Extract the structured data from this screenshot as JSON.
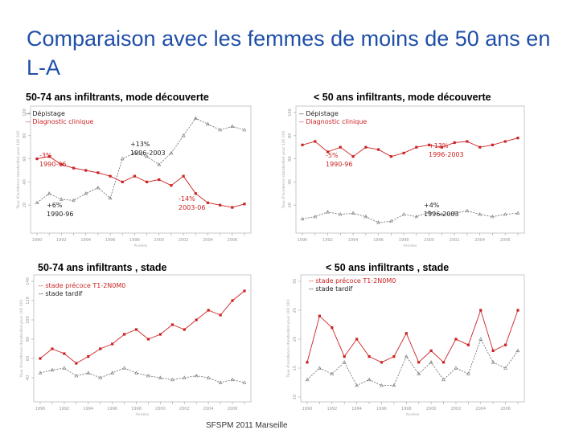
{
  "slide": {
    "title": "Comparaison avec les femmes de moins de 50 ans en L-A",
    "footer": "SFSPM 2011 Marseille"
  },
  "chart_data": [
    {
      "id": "c1",
      "type": "line",
      "title": "50-74 ans infiltrants, mode découverte",
      "xlabel": "Années",
      "ylabel": "Taux d'incidence standardisé pour 100 000",
      "categories": [
        "1990",
        "1991",
        "1992",
        "1993",
        "1994",
        "1995",
        "1996",
        "1997",
        "1998",
        "1999",
        "2000",
        "2001",
        "2002",
        "2003",
        "2004",
        "2005",
        "2006",
        "2007"
      ],
      "x_tick_labels": [
        "1990",
        "1992",
        "1994",
        "1996",
        "1998",
        "2000",
        "2002",
        "2004",
        "2006"
      ],
      "ylim": [
        0,
        100
      ],
      "y_ticks": [
        "20",
        "40",
        "60",
        "80",
        "100"
      ],
      "series": [
        {
          "name": "-- Dépistage",
          "color": "#777777",
          "marker": "triangle",
          "values": [
            22,
            30,
            25,
            24,
            30,
            35,
            26,
            60,
            65,
            62,
            55,
            65,
            80,
            95,
            90,
            85,
            88,
            85
          ]
        },
        {
          "name": "-- Diagnostic clinique",
          "color": "#cc2222",
          "marker": "square",
          "values": [
            60,
            62,
            55,
            52,
            50,
            48,
            45,
            40,
            45,
            40,
            42,
            37,
            45,
            30,
            22,
            20,
            18,
            21
          ]
        }
      ],
      "annotations": [
        {
          "lines": [
            "-3%",
            "1990-96"
          ],
          "color": "#cc2222"
        },
        {
          "lines": [
            "+13%",
            "1996-2003"
          ],
          "color": "#222222"
        },
        {
          "lines": [
            "+6%",
            "1990-96"
          ],
          "color": "#222222"
        },
        {
          "lines": [
            "-14%",
            "2003-06"
          ],
          "color": "#cc2222"
        }
      ]
    },
    {
      "id": "c2",
      "type": "line",
      "title": "< 50 ans infiltrants, mode découverte",
      "xlabel": "Années",
      "ylabel": "Taux d'incidence standardisé pour 100 000",
      "categories": [
        "1990",
        "1991",
        "1992",
        "1993",
        "1994",
        "1995",
        "1996",
        "1997",
        "1998",
        "1999",
        "2000",
        "2001",
        "2002",
        "2003",
        "2004",
        "2005",
        "2006",
        "2007"
      ],
      "x_tick_labels": [
        "1990",
        "1992",
        "1994",
        "1996",
        "1998",
        "2000",
        "2002",
        "2004",
        "2006"
      ],
      "ylim": [
        0,
        100
      ],
      "y_ticks": [
        "20",
        "40",
        "60",
        "80",
        "100"
      ],
      "series": [
        {
          "name": "-- Dépistage",
          "color": "#777777",
          "marker": "triangle",
          "values": [
            8,
            10,
            14,
            12,
            13,
            10,
            5,
            6,
            12,
            10,
            14,
            12,
            13,
            15,
            12,
            10,
            12,
            13
          ]
        },
        {
          "name": "-- Diagnostic clinique",
          "color": "#cc2222",
          "marker": "square",
          "values": [
            72,
            75,
            66,
            70,
            62,
            70,
            68,
            62,
            65,
            70,
            72,
            70,
            74,
            75,
            70,
            72,
            75,
            78
          ]
        }
      ],
      "annotations": [
        {
          "lines": [
            "-5%",
            "1990-96"
          ],
          "color": "#cc2222"
        },
        {
          "lines": [
            "+13%",
            "1996-2003"
          ],
          "color": "#cc2222"
        },
        {
          "lines": [
            "+4%",
            "1996-2003"
          ],
          "color": "#222222"
        }
      ]
    },
    {
      "id": "c3",
      "type": "line",
      "title": "50-74 ans infiltrants , stade",
      "xlabel": "Années",
      "ylabel": "Taux d'incidence standardisé pour 100 000",
      "categories": [
        "1990",
        "1991",
        "1992",
        "1993",
        "1994",
        "1995",
        "1996",
        "1997",
        "1998",
        "1999",
        "2000",
        "2001",
        "2002",
        "2003",
        "2004",
        "2005",
        "2006",
        "2007"
      ],
      "x_tick_labels": [
        "1990",
        "1992",
        "1994",
        "1996",
        "1998",
        "2000",
        "2002",
        "2004",
        "2006"
      ],
      "ylim": [
        20,
        140
      ],
      "y_ticks": [
        "40",
        "60",
        "80",
        "100",
        "120",
        "140"
      ],
      "series": [
        {
          "name": "-- stade précoce T1-2N0M0",
          "color": "#cc2222",
          "marker": "square",
          "values": [
            60,
            70,
            65,
            55,
            62,
            70,
            75,
            85,
            90,
            80,
            85,
            95,
            90,
            100,
            110,
            105,
            120,
            130
          ]
        },
        {
          "name": "-- stade tardif",
          "color": "#777777",
          "marker": "triangle",
          "values": [
            45,
            48,
            50,
            42,
            45,
            40,
            45,
            50,
            45,
            42,
            40,
            38,
            40,
            42,
            40,
            35,
            38,
            35
          ]
        }
      ]
    },
    {
      "id": "c4",
      "type": "line",
      "title": "< 50 ans infiltrants , stade",
      "xlabel": "Années",
      "ylabel": "Taux d'incidence standardisé pour 100 000",
      "categories": [
        "1990",
        "1991",
        "1992",
        "1993",
        "1994",
        "1995",
        "1996",
        "1997",
        "1998",
        "1999",
        "2000",
        "2001",
        "2002",
        "2003",
        "2004",
        "2005",
        "2006",
        "2007"
      ],
      "x_tick_labels": [
        "1990",
        "1992",
        "1994",
        "1996",
        "1998",
        "2000",
        "2002",
        "2004",
        "2006"
      ],
      "ylim": [
        10,
        30
      ],
      "y_ticks": [
        "10",
        "15",
        "20",
        "25",
        "30"
      ],
      "series": [
        {
          "name": "-- stade précoce T1-2N0M0",
          "color": "#cc2222",
          "marker": "square",
          "values": [
            16,
            24,
            22,
            17,
            20,
            17,
            16,
            17,
            21,
            16,
            18,
            16,
            20,
            19,
            25,
            18,
            19,
            25
          ]
        },
        {
          "name": "-- stade tardif",
          "color": "#777777",
          "marker": "triangle",
          "values": [
            13,
            15,
            14,
            16,
            12,
            13,
            12,
            12,
            17,
            14,
            16,
            13,
            15,
            14,
            20,
            16,
            15,
            18
          ]
        }
      ]
    }
  ]
}
